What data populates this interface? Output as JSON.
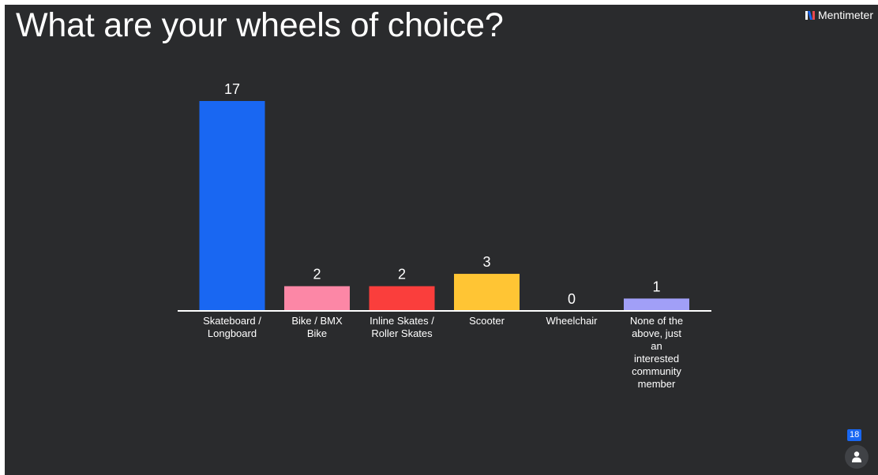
{
  "title": "What are your wheels of choice?",
  "brand": {
    "name": "Mentimeter",
    "icon": "mentimeter-logo-icon",
    "icon_colors": [
      "#ffffff",
      "#1967f2",
      "#e8484e"
    ]
  },
  "participants": {
    "count": "18",
    "icon": "person-icon"
  },
  "colors": {
    "background": "#2a2b2d",
    "text": "#ffffff",
    "badge": "#1967f2"
  },
  "chart_data": {
    "type": "bar",
    "title": "",
    "xlabel": "",
    "ylabel": "",
    "ylim": [
      0,
      17
    ],
    "grid": false,
    "legend": "none",
    "categories": [
      "Skateboard / Longboard",
      "Bike / BMX Bike",
      "Inline Skates / Roller Skates",
      "Scooter",
      "Wheelchair",
      "None of the above, just an interested community member"
    ],
    "values": [
      17,
      2,
      2,
      3,
      0,
      1
    ],
    "colors": [
      "#1967f2",
      "#fc87a6",
      "#fa3e3c",
      "#ffc534",
      "#9fa0a3",
      "#a19ff7"
    ]
  }
}
